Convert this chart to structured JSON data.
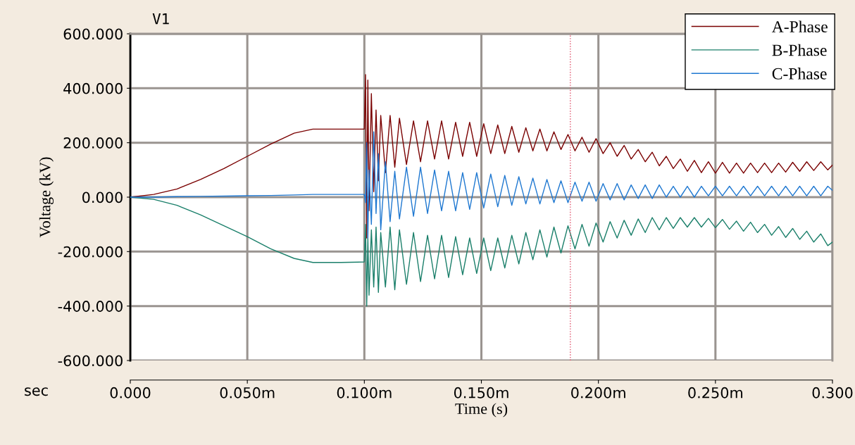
{
  "chart_data": {
    "type": "line",
    "xlabel": "Time (s)",
    "ylabel": "Voltage (kV)",
    "annotations": [
      "V1",
      "sec"
    ],
    "xlim": [
      0,
      0.3
    ],
    "xticks": [
      {
        "value": 0,
        "label": "0.000"
      },
      {
        "value": 0.05,
        "label": "0.050m"
      },
      {
        "value": 0.1,
        "label": "0.100m"
      },
      {
        "value": 0.15,
        "label": "0.150m"
      },
      {
        "value": 0.2,
        "label": "0.200m"
      },
      {
        "value": 0.25,
        "label": "0.250m"
      },
      {
        "value": 0.3,
        "label": "0.300"
      }
    ],
    "ylim": [
      -600,
      600
    ],
    "yticks": [
      {
        "value": -600,
        "label": "-600.000"
      },
      {
        "value": -400,
        "label": "-400.000"
      },
      {
        "value": -200,
        "label": "-200.000"
      },
      {
        "value": 0,
        "label": "0.000"
      },
      {
        "value": 200,
        "label": "200.000"
      },
      {
        "value": 400,
        "label": "400.000"
      },
      {
        "value": 600,
        "label": "600.000"
      }
    ],
    "grid": true,
    "legend": "top right",
    "ref_lines": [
      {
        "axis": "x",
        "value": 0.188,
        "color": "#e0506a",
        "line_style": "dotted"
      }
    ],
    "series": [
      {
        "name": "A-Phase",
        "color": "#7a0000",
        "x": [
          0,
          0.01,
          0.02,
          0.03,
          0.04,
          0.05,
          0.06,
          0.07,
          0.078,
          0.09,
          0.1,
          0.1005,
          0.101,
          0.1015,
          0.102,
          0.103,
          0.104,
          0.105,
          0.106,
          0.107,
          0.109,
          0.111,
          0.113,
          0.115,
          0.118,
          0.121,
          0.124,
          0.127,
          0.13,
          0.133,
          0.136,
          0.139,
          0.142,
          0.145,
          0.148,
          0.151,
          0.154,
          0.157,
          0.16,
          0.163,
          0.166,
          0.169,
          0.172,
          0.175,
          0.178,
          0.181,
          0.184,
          0.187,
          0.19,
          0.193,
          0.196,
          0.199,
          0.202,
          0.205,
          0.208,
          0.211,
          0.214,
          0.217,
          0.22,
          0.223,
          0.226,
          0.229,
          0.232,
          0.235,
          0.238,
          0.241,
          0.244,
          0.247,
          0.25,
          0.253,
          0.256,
          0.259,
          0.262,
          0.265,
          0.268,
          0.271,
          0.274,
          0.277,
          0.28,
          0.283,
          0.286,
          0.289,
          0.292,
          0.295,
          0.298,
          0.3
        ],
        "values": [
          0,
          10,
          30,
          65,
          105,
          150,
          195,
          235,
          250,
          250,
          250,
          450,
          -150,
          430,
          -50,
          380,
          20,
          320,
          60,
          300,
          90,
          300,
          110,
          290,
          120,
          280,
          130,
          280,
          140,
          280,
          140,
          275,
          150,
          275,
          150,
          270,
          160,
          265,
          160,
          260,
          165,
          255,
          170,
          250,
          170,
          240,
          175,
          230,
          170,
          220,
          165,
          215,
          160,
          200,
          150,
          190,
          140,
          175,
          130,
          165,
          115,
          150,
          105,
          140,
          95,
          135,
          90,
          130,
          88,
          128,
          88,
          125,
          88,
          125,
          90,
          125,
          90,
          125,
          92,
          128,
          95,
          130,
          98,
          130,
          100,
          118
        ]
      },
      {
        "name": "B-Phase",
        "color": "#1a7f6a",
        "x": [
          0,
          0.01,
          0.02,
          0.03,
          0.04,
          0.05,
          0.06,
          0.07,
          0.078,
          0.09,
          0.1,
          0.1005,
          0.101,
          0.1015,
          0.102,
          0.103,
          0.104,
          0.105,
          0.106,
          0.107,
          0.109,
          0.111,
          0.113,
          0.115,
          0.118,
          0.121,
          0.124,
          0.127,
          0.13,
          0.133,
          0.136,
          0.139,
          0.142,
          0.145,
          0.148,
          0.151,
          0.154,
          0.157,
          0.16,
          0.163,
          0.166,
          0.169,
          0.172,
          0.175,
          0.178,
          0.181,
          0.184,
          0.187,
          0.19,
          0.193,
          0.196,
          0.199,
          0.202,
          0.205,
          0.208,
          0.211,
          0.214,
          0.217,
          0.22,
          0.223,
          0.226,
          0.229,
          0.232,
          0.235,
          0.238,
          0.241,
          0.244,
          0.247,
          0.25,
          0.253,
          0.256,
          0.259,
          0.262,
          0.265,
          0.268,
          0.271,
          0.274,
          0.277,
          0.28,
          0.283,
          0.286,
          0.289,
          0.292,
          0.295,
          0.298,
          0.3
        ],
        "values": [
          0,
          -8,
          -30,
          -65,
          -105,
          -145,
          -190,
          -225,
          -240,
          -240,
          -238,
          -100,
          -400,
          -150,
          -360,
          -120,
          -330,
          -110,
          -350,
          -130,
          -330,
          -110,
          -340,
          -120,
          -320,
          -130,
          -310,
          -140,
          -300,
          -140,
          -295,
          -145,
          -285,
          -150,
          -280,
          -150,
          -270,
          -150,
          -260,
          -140,
          -245,
          -130,
          -230,
          -120,
          -220,
          -110,
          -205,
          -105,
          -190,
          -100,
          -180,
          -95,
          -165,
          -90,
          -150,
          -85,
          -140,
          -80,
          -130,
          -75,
          -120,
          -75,
          -115,
          -75,
          -110,
          -75,
          -110,
          -78,
          -112,
          -82,
          -118,
          -88,
          -125,
          -92,
          -130,
          -100,
          -140,
          -108,
          -148,
          -115,
          -155,
          -125,
          -165,
          -135,
          -178,
          -165
        ]
      },
      {
        "name": "C-Phase",
        "color": "#1f78d1",
        "x": [
          0,
          0.01,
          0.02,
          0.03,
          0.04,
          0.05,
          0.06,
          0.07,
          0.078,
          0.09,
          0.1,
          0.1005,
          0.101,
          0.1015,
          0.102,
          0.103,
          0.104,
          0.105,
          0.106,
          0.107,
          0.109,
          0.111,
          0.113,
          0.115,
          0.118,
          0.121,
          0.124,
          0.127,
          0.13,
          0.133,
          0.136,
          0.139,
          0.142,
          0.145,
          0.148,
          0.151,
          0.154,
          0.157,
          0.16,
          0.163,
          0.166,
          0.169,
          0.172,
          0.175,
          0.178,
          0.181,
          0.184,
          0.187,
          0.19,
          0.193,
          0.196,
          0.199,
          0.202,
          0.205,
          0.208,
          0.211,
          0.214,
          0.217,
          0.22,
          0.223,
          0.226,
          0.229,
          0.232,
          0.235,
          0.238,
          0.241,
          0.244,
          0.247,
          0.25,
          0.253,
          0.256,
          0.259,
          0.262,
          0.265,
          0.268,
          0.271,
          0.274,
          0.277,
          0.28,
          0.283,
          0.286,
          0.289,
          0.292,
          0.295,
          0.298,
          0.3
        ],
        "values": [
          0,
          0,
          2,
          3,
          4,
          5,
          6,
          8,
          10,
          10,
          10,
          -20,
          200,
          -150,
          100,
          -100,
          240,
          -60,
          160,
          -120,
          130,
          -90,
          95,
          -80,
          110,
          -70,
          110,
          -60,
          100,
          -50,
          95,
          -50,
          90,
          -45,
          90,
          -40,
          85,
          -35,
          80,
          -30,
          75,
          -25,
          70,
          -25,
          65,
          -20,
          60,
          -20,
          55,
          -15,
          55,
          -15,
          50,
          -10,
          50,
          -10,
          45,
          -5,
          45,
          -5,
          45,
          0,
          40,
          0,
          40,
          0,
          40,
          5,
          40,
          5,
          40,
          5,
          40,
          5,
          40,
          5,
          40,
          5,
          40,
          5,
          40,
          5,
          40,
          5,
          40,
          25
        ]
      }
    ]
  }
}
